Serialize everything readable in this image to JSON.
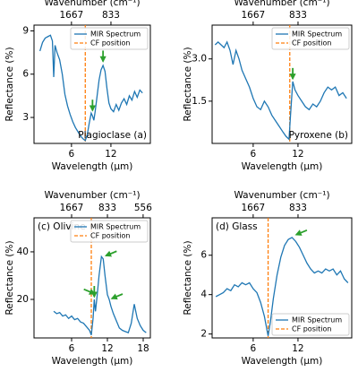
{
  "chart_data": [
    {
      "type": "line",
      "xlabel": "Wavelength (µm)",
      "ylabel": "Reflectance (%)",
      "x2label": "Wavenumber (cm⁻¹)",
      "xlim": [
        0.3,
        18
      ],
      "ylim": [
        1.2,
        9.4
      ],
      "xticks": [
        6,
        12
      ],
      "yticks": [
        3,
        6,
        9
      ],
      "x2ticks": [
        1667,
        833
      ],
      "x": [
        1.2,
        1.6,
        2.0,
        2.4,
        2.8,
        3.1,
        3.3,
        3.5,
        3.8,
        4.2,
        4.6,
        5.0,
        5.4,
        5.8,
        6.2,
        6.6,
        7.0,
        7.4,
        7.8,
        8.1,
        8.4,
        8.7,
        9.0,
        9.2,
        9.4,
        9.6,
        9.9,
        10.2,
        10.5,
        10.8,
        11.1,
        11.4,
        11.7,
        12.0,
        12.4,
        12.8,
        13.2,
        13.6,
        14.0,
        14.4,
        14.8,
        15.2,
        15.6,
        16.0,
        16.4,
        16.8
      ],
      "series": [
        {
          "name": "MIR Spectrum",
          "color": "#1f77b4",
          "values": [
            7.6,
            8.2,
            8.5,
            8.6,
            8.7,
            8.3,
            5.8,
            8.0,
            7.5,
            7.0,
            6.0,
            4.6,
            3.8,
            3.2,
            2.7,
            2.3,
            2.0,
            1.7,
            1.5,
            1.4,
            1.8,
            2.6,
            3.3,
            3.1,
            2.8,
            3.4,
            4.5,
            5.6,
            6.3,
            6.6,
            6.2,
            5.0,
            4.0,
            3.6,
            3.4,
            3.9,
            3.5,
            4.0,
            4.3,
            3.9,
            4.5,
            4.2,
            4.8,
            4.4,
            4.9,
            4.7
          ]
        }
      ],
      "reference_line": {
        "name": "CF position",
        "x": 8.1,
        "color": "#ff7f0e"
      },
      "legend": "upper right",
      "annotation": {
        "text": "Plagioclase (a)",
        "corner": "lower right"
      },
      "arrows": [
        {
          "x": 9.2,
          "y": 3.3,
          "from": "above"
        },
        {
          "x": 10.8,
          "y": 6.7,
          "from": "above"
        }
      ],
      "arrow_color": "#2ca02c"
    },
    {
      "type": "line",
      "xlabel": "Wavelength (µm)",
      "ylabel": "Reflectance (%)",
      "x2label": "Wavenumber (cm⁻¹)",
      "xlim": [
        0.5,
        19.2
      ],
      "ylim": [
        0,
        4.2
      ],
      "xticks": [
        6,
        12
      ],
      "yticks": [
        1.5,
        {
          "value": 3.0,
          "label": "3.0"
        }
      ],
      "x2ticks": [
        1667,
        833
      ],
      "x": [
        0.9,
        1.3,
        1.7,
        2.1,
        2.5,
        2.9,
        3.3,
        3.7,
        4.1,
        4.5,
        5.0,
        5.5,
        6.0,
        6.5,
        7.0,
        7.5,
        8.0,
        8.5,
        9.0,
        9.5,
        10.0,
        10.4,
        10.8,
        11.0,
        11.3,
        11.6,
        12.0,
        12.5,
        13.0,
        13.5,
        14.0,
        14.5,
        15.0,
        15.5,
        16.0,
        16.5,
        17.0,
        17.5,
        18.0,
        18.5
      ],
      "series": [
        {
          "name": "MIR Spectrum",
          "color": "#1f77b4",
          "values": [
            3.5,
            3.6,
            3.5,
            3.4,
            3.6,
            3.3,
            2.8,
            3.3,
            3.0,
            2.6,
            2.3,
            2.0,
            1.6,
            1.3,
            1.2,
            1.5,
            1.3,
            1.0,
            0.8,
            0.6,
            0.4,
            0.25,
            0.15,
            1.0,
            2.2,
            1.9,
            1.7,
            1.5,
            1.3,
            1.2,
            1.4,
            1.3,
            1.5,
            1.8,
            2.0,
            1.9,
            2.0,
            1.7,
            1.8,
            1.6
          ]
        }
      ],
      "reference_line": {
        "name": "CF position",
        "x": 10.9,
        "color": "#ff7f0e"
      },
      "legend": "upper right",
      "annotation": {
        "text": "Pyroxene (b)",
        "corner": "lower right"
      },
      "arrows": [
        {
          "x": 11.3,
          "y": 2.2,
          "from": "above"
        }
      ],
      "arrow_color": "#2ca02c"
    },
    {
      "type": "line",
      "xlabel": "Wavelength (µm)",
      "ylabel": "Reflectance (%)",
      "x2label": "Wavenumber (cm⁻¹)",
      "xlim": [
        -0.3,
        19.2
      ],
      "ylim": [
        3.8,
        54.3
      ],
      "xticks": [
        6,
        12,
        18
      ],
      "yticks": [
        20,
        40
      ],
      "x2ticks": [
        1667,
        833,
        556
      ],
      "x": [
        3.0,
        3.5,
        4.0,
        4.5,
        5.0,
        5.5,
        6.0,
        6.5,
        7.0,
        7.5,
        8.0,
        8.5,
        9.0,
        9.3,
        9.6,
        9.8,
        10.0,
        10.3,
        10.6,
        11.0,
        11.3,
        11.6,
        12.0,
        12.3,
        12.6,
        13.0,
        13.5,
        14.0,
        14.5,
        15.0,
        15.5,
        16.0,
        16.5,
        17.0,
        17.5,
        18.0,
        18.5
      ],
      "series": [
        {
          "name": "MIR Spectrum",
          "color": "#1f77b4",
          "values": [
            15,
            14,
            14.5,
            13,
            13.5,
            12,
            13,
            11.5,
            12,
            10.5,
            10,
            8.5,
            7,
            5,
            12,
            20,
            15,
            22,
            30,
            38,
            37,
            30,
            22,
            20,
            17,
            14,
            11,
            8,
            7,
            6.5,
            6,
            10,
            18,
            12,
            9,
            7,
            6
          ]
        }
      ],
      "reference_line": {
        "name": "CF position",
        "x": 9.3,
        "color": "#ff7f0e"
      },
      "legend": "upper right",
      "annotation": {
        "text": "(c) Olivine",
        "corner": "upper left"
      },
      "arrows": [
        {
          "x": 9.8,
          "y": 20,
          "from": "above"
        },
        {
          "x": 10.3,
          "y": 22,
          "from": "left"
        },
        {
          "x": 11.3,
          "y": 38,
          "from": "right"
        },
        {
          "x": 12.3,
          "y": 20,
          "from": "right"
        }
      ],
      "arrow_color": "#2ca02c"
    },
    {
      "type": "line",
      "xlabel": "Wavelength (µm)",
      "ylabel": "Reflectance (%)",
      "x2label": "Wavenumber (cm⁻¹)",
      "xlim": [
        0.5,
        19.2
      ],
      "ylim": [
        1.8,
        7.9
      ],
      "xticks": [
        6,
        12
      ],
      "yticks": [
        2,
        4,
        6
      ],
      "x2ticks": [
        1667,
        833
      ],
      "x": [
        1.0,
        1.5,
        2.0,
        2.5,
        3.0,
        3.5,
        4.0,
        4.5,
        5.0,
        5.5,
        6.0,
        6.5,
        7.0,
        7.5,
        7.8,
        8.0,
        8.3,
        8.7,
        9.2,
        9.7,
        10.2,
        10.7,
        11.2,
        11.7,
        12.2,
        12.7,
        13.2,
        13.7,
        14.2,
        14.7,
        15.2,
        15.7,
        16.2,
        16.7,
        17.2,
        17.7,
        18.2,
        18.7
      ],
      "series": [
        {
          "name": "MIR Spectrum",
          "color": "#1f77b4",
          "values": [
            3.9,
            4.0,
            4.1,
            4.3,
            4.2,
            4.5,
            4.4,
            4.6,
            4.5,
            4.6,
            4.3,
            4.1,
            3.6,
            2.9,
            2.3,
            1.9,
            2.6,
            3.8,
            5.0,
            5.9,
            6.5,
            6.8,
            6.9,
            6.7,
            6.4,
            6.0,
            5.6,
            5.3,
            5.1,
            5.2,
            5.1,
            5.3,
            5.2,
            5.3,
            5.0,
            5.2,
            4.8,
            4.6
          ]
        }
      ],
      "reference_line": {
        "name": "CF position",
        "x": 8.0,
        "color": "#ff7f0e"
      },
      "legend": "lower right",
      "annotation": {
        "text": "(d) Glass",
        "corner": "upper left"
      },
      "arrows": [
        {
          "x": 11.4,
          "y": 7.0,
          "from": "right"
        }
      ],
      "arrow_color": "#2ca02c"
    }
  ]
}
